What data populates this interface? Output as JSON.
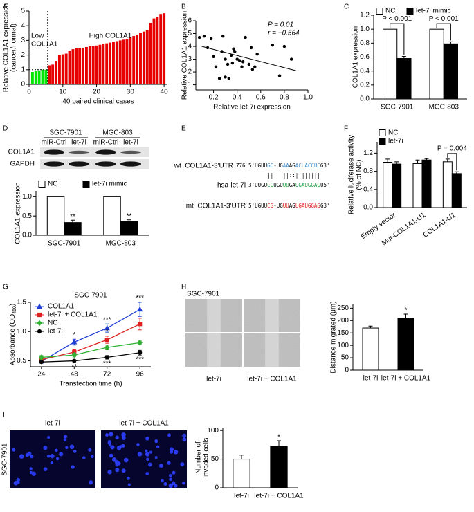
{
  "chart_data": [
    {
      "type": "bar",
      "label": "A",
      "ylabel": [
        "Relative COL1A1 expression",
        "(cancer/normal)"
      ],
      "xlabel": "40 paired clinical cases",
      "x": [
        1,
        2,
        3,
        4,
        5,
        6,
        7,
        8,
        9,
        10,
        11,
        12,
        13,
        14,
        15,
        16,
        17,
        18,
        19,
        20,
        21,
        22,
        23,
        24,
        25,
        26,
        27,
        28,
        29,
        30,
        31,
        32,
        33,
        34,
        35,
        36,
        37,
        38,
        39,
        40
      ],
      "values": [
        0.85,
        0.9,
        0.95,
        1.0,
        1.0,
        1.3,
        1.35,
        1.6,
        2.0,
        2.05,
        2.1,
        2.3,
        2.4,
        2.45,
        2.5,
        2.5,
        2.55,
        2.6,
        2.6,
        2.65,
        2.7,
        2.75,
        2.8,
        2.85,
        2.9,
        2.95,
        3.0,
        3.05,
        3.1,
        3.2,
        3.3,
        3.4,
        3.5,
        3.6,
        3.7,
        4.2,
        4.5,
        4.6,
        4.8,
        4.85
      ],
      "threshold": 1,
      "low_color": "#00e600",
      "high_color": "#e60000",
      "low_label": [
        "Low",
        "COL1A1"
      ],
      "high_label": "High COL1A1",
      "xlim": [
        0,
        41
      ],
      "xticks": [
        0,
        10,
        20,
        30,
        40
      ],
      "ylim": [
        0,
        5
      ],
      "yticks": [
        0,
        1,
        2,
        3,
        4,
        5
      ]
    },
    {
      "type": "scatter",
      "label": "B",
      "ylabel": "Relative COL1A1 expression",
      "xlabel": "Relative let-7i expression",
      "x": [
        0.08,
        0.12,
        0.15,
        0.18,
        0.2,
        0.22,
        0.25,
        0.27,
        0.28,
        0.3,
        0.3,
        0.32,
        0.33,
        0.35,
        0.36,
        0.37,
        0.38,
        0.4,
        0.42,
        0.44,
        0.45,
        0.47,
        0.5,
        0.52,
        0.53,
        0.55,
        0.57,
        0.7,
        0.76,
        0.8,
        0.86
      ],
      "values": [
        4.7,
        4.8,
        3.9,
        4.6,
        3.2,
        2.4,
        1.5,
        3.6,
        4.8,
        1.6,
        3.0,
        2.6,
        1.5,
        3.3,
        2.7,
        3.8,
        3.6,
        3.0,
        2.9,
        2.4,
        2.8,
        4.7,
        2.6,
        3.9,
        2.2,
        2.4,
        3.4,
        4.1,
        1.7,
        4.0,
        3.0
      ],
      "color": "#000000",
      "fit": {
        "x": [
          0.1,
          0.9
        ],
        "y": [
          4.0,
          2.1
        ]
      },
      "stats": [
        "P = 0.01",
        "r = −0.564"
      ],
      "xlim": [
        0.05,
        1.0
      ],
      "xticks": [
        0.2,
        0.4,
        0.6,
        0.8,
        {
          "value": 1,
          "label": "1.0"
        }
      ],
      "ylim": [
        0.6,
        6
      ],
      "yticks": [
        1,
        2,
        3,
        4,
        5,
        6
      ]
    },
    {
      "type": "bar",
      "label": "C",
      "ylabel": "COL1A1 expression",
      "categories": [
        "SGC-7901",
        "MGC-803"
      ],
      "series": [
        {
          "name": "NC",
          "color": "#ffffff",
          "values": [
            1.0,
            1.0
          ]
        },
        {
          "name": "let-7i mimic",
          "color": "#000000",
          "values": [
            0.58,
            0.79
          ],
          "errors": [
            0.03,
            0.03
          ]
        }
      ],
      "annotations": [
        "P < 0.001",
        "P < 0.001"
      ],
      "ylim": [
        0,
        1.2
      ],
      "yticks": [
        {
          "value": 0,
          "label": "0.0"
        },
        0.2,
        0.4,
        0.6,
        0.8,
        {
          "value": 1,
          "label": "1.0"
        },
        1.2
      ]
    },
    {
      "type": "bar",
      "label": "D",
      "ylabel": "COL1A1 expression",
      "categories": [
        "SGC-7901",
        "MGC-803"
      ],
      "series": [
        {
          "name": "NC",
          "color": "#ffffff",
          "values": [
            1.0,
            1.0
          ]
        },
        {
          "name": "let-7i mimic",
          "color": "#000000",
          "values": [
            0.33,
            0.35
          ],
          "errors": [
            0.06,
            0.05
          ],
          "significance": [
            "**",
            "**"
          ]
        }
      ],
      "blot": {
        "cell_lines": [
          "SGC-7901",
          "MGC-803"
        ],
        "lanes": [
          "miR-Ctrl",
          "let-7i",
          "miR-Ctrl",
          "let-7i"
        ],
        "proteins": [
          "COL1A1",
          "GAPDH"
        ]
      },
      "ylim": [
        0,
        1.15
      ],
      "yticks": [
        {
          "value": 0,
          "label": "0.0"
        },
        0.5,
        {
          "value": 1,
          "label": "1.0"
        }
      ]
    },
    {
      "type": "sequence",
      "label": "E",
      "rows": [
        {
          "name": "wt  COL1A1-3'UTR",
          "segments": [
            {
              "text": "776 5'UGUU",
              "color": "#000000"
            },
            {
              "text": "GC",
              "color": "#3a8fd6"
            },
            {
              "text": "-UG",
              "color": "#000000"
            },
            {
              "text": "AA",
              "color": "#3a8fd6"
            },
            {
              "text": "AG",
              "color": "#000000"
            },
            {
              "text": "ACUACCUC",
              "color": "#3a8fd6"
            },
            {
              "text": "G3'",
              "color": "#000000"
            }
          ]
        },
        {
          "name": "hsa-let-7i",
          "segments": [
            {
              "text": "3'UUGU",
              "color": "#000000"
            },
            {
              "text": "CG",
              "color": "#22a045"
            },
            {
              "text": "UGU",
              "color": "#000000"
            },
            {
              "text": "UU",
              "color": "#22a045"
            },
            {
              "text": "GA",
              "color": "#000000"
            },
            {
              "text": "UGAUGGAG",
              "color": "#22a045"
            },
            {
              "text": "U5'",
              "color": "#000000"
            }
          ]
        },
        {
          "name": "mt  COL1A1-3'UTR",
          "segments": [
            {
              "text": "5'UGUU",
              "color": "#000000"
            },
            {
              "text": "CG",
              "color": "#e02020"
            },
            {
              "text": "-UG",
              "color": "#000000"
            },
            {
              "text": "UU",
              "color": "#e02020"
            },
            {
              "text": "AG",
              "color": "#000000"
            },
            {
              "text": "UGAUGGAG",
              "color": "#e02020"
            },
            {
              "text": "G3'",
              "color": "#000000"
            }
          ]
        }
      ],
      "pairing": "      ||   ||::||||||||"
    },
    {
      "type": "bar",
      "label": "F",
      "ylabel": [
        "Relative luciferase activity",
        "(% of NC)"
      ],
      "categories": [
        "Empty vector",
        "Mut-COL1A1-U1",
        "COL1A1-U1"
      ],
      "series": [
        {
          "name": "NC",
          "color": "#ffffff",
          "values": [
            1.0,
            0.97,
            1.01
          ],
          "errors": [
            0.07,
            0.08,
            0.06
          ]
        },
        {
          "name": "let-7i",
          "color": "#000000",
          "values": [
            0.96,
            1.05,
            0.75
          ],
          "errors": [
            0.05,
            0.03,
            0.04
          ]
        }
      ],
      "annotations": [
        null,
        null,
        "P = 0.004"
      ],
      "xtick_rotation": -35,
      "ylim": [
        0,
        1.45
      ],
      "yticks": [
        {
          "value": 0,
          "label": "0.0"
        },
        0.4,
        0.8,
        1.2
      ]
    },
    {
      "type": "line",
      "label": "G",
      "title": "SGC-7901",
      "ylabel": "Absorbance (OD",
      "ylabel_sub": "450",
      "ylabel_end": ")",
      "xlabel": "Transfection time (h)",
      "x": [
        24,
        48,
        72,
        96
      ],
      "series": [
        {
          "name": "COL1A1",
          "color": "#1f3fd6",
          "marker": "triangle",
          "values": [
            0.49,
            0.82,
            1.06,
            1.38
          ],
          "errors": [
            0.03,
            0.05,
            0.07,
            0.12
          ],
          "significance": [
            null,
            "*",
            "***",
            "***"
          ]
        },
        {
          "name": "let-7i + COL1A1",
          "color": "#e02020",
          "marker": "square",
          "values": [
            0.52,
            0.65,
            0.86,
            1.13
          ],
          "errors": [
            0.03,
            0.04,
            0.06,
            0.1
          ],
          "significance": [
            null,
            null,
            "*",
            null
          ]
        },
        {
          "name": "NC",
          "color": "#30b030",
          "marker": "diamond",
          "values": [
            0.56,
            0.6,
            0.73,
            0.81
          ],
          "errors": [
            0.03,
            0.03,
            0.04,
            0.03
          ]
        },
        {
          "name": "let-7i",
          "color": "#000000",
          "marker": "circle",
          "values": [
            0.48,
            0.5,
            0.56,
            0.64
          ],
          "errors": [
            0.02,
            0.02,
            0.03,
            0.04
          ],
          "significance": [
            null,
            "**",
            "***",
            "***"
          ],
          "significance_side": "below"
        }
      ],
      "xlim": [
        16,
        104
      ],
      "xticks": [
        24,
        48,
        72,
        96
      ],
      "ylim": [
        0.4,
        1.5
      ],
      "yticks": [
        0.5,
        {
          "value": 1,
          "label": "1.0"
        },
        1.5
      ]
    },
    {
      "type": "bar",
      "label": "H",
      "image_title": "SGC-7901",
      "image_labels": [
        "let-7i",
        "let-7i + COL1A1"
      ],
      "ylabel": "Distance migrated (μm)",
      "categories": [
        "let-7i",
        "let-7i + COL1A1"
      ],
      "values": [
        170,
        208
      ],
      "colors": [
        "#ffffff",
        "#000000"
      ],
      "errors": [
        8,
        18
      ],
      "significance": [
        null,
        "*"
      ],
      "ylim": [
        0,
        265
      ],
      "yticks": [
        0,
        50,
        100,
        150,
        200,
        250
      ]
    },
    {
      "type": "bar",
      "label": "I",
      "image_side_label": "SGC-7901",
      "image_labels": [
        "let-7i",
        "let-7i + COL1A1"
      ],
      "ylabel": [
        "Number of",
        "invaded cells"
      ],
      "categories": [
        "let-7i",
        "let-7i + COL1A1"
      ],
      "values": [
        50,
        73
      ],
      "colors": [
        "#ffffff",
        "#000000"
      ],
      "errors": [
        7,
        9
      ],
      "significance": [
        null,
        "*"
      ],
      "ylim": [
        0,
        105
      ],
      "yticks": [
        0,
        50,
        100
      ]
    }
  ]
}
